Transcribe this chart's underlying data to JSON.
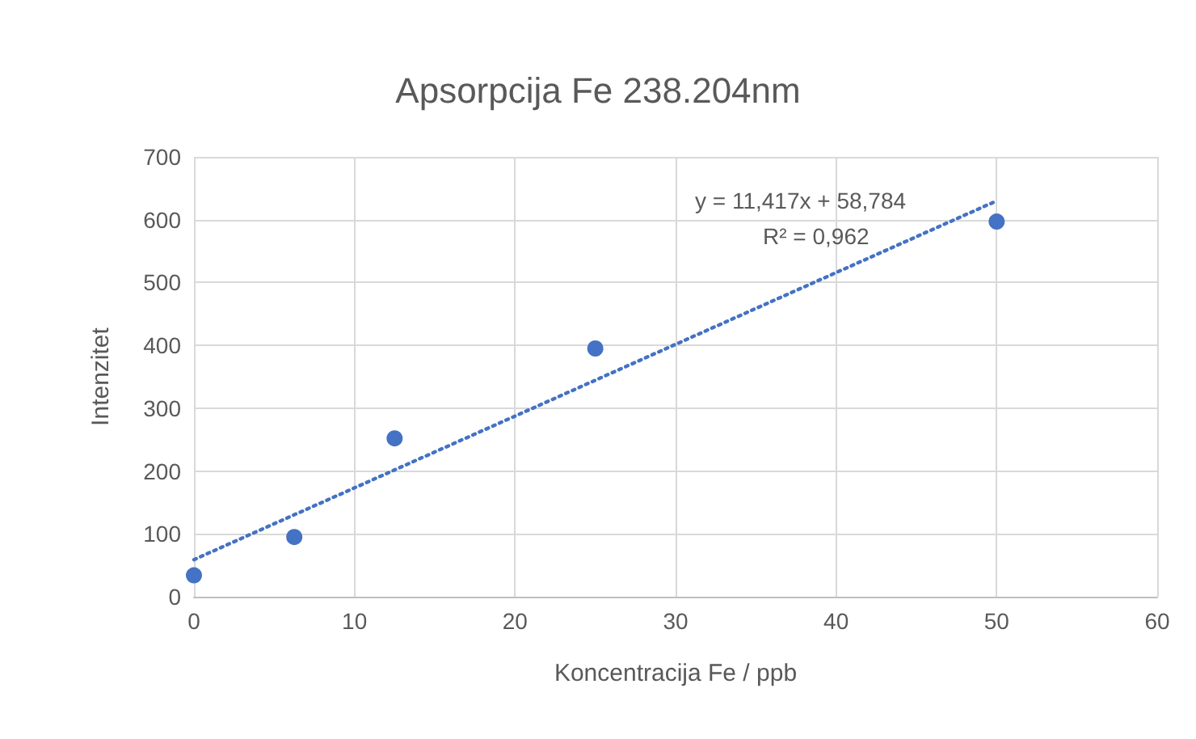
{
  "chart_data": {
    "type": "scatter",
    "title": "Apsorpcija Fe 238.204nm",
    "xlabel": "Koncentracija Fe / ppb",
    "ylabel": "Intenzitet",
    "series": [
      {
        "color": "#4472c4",
        "marker": "circle",
        "x": [
          0,
          6.25,
          12.5,
          25,
          50
        ],
        "values": [
          34,
          95,
          252,
          395,
          597
        ]
      },
      {
        "type": "line",
        "color": "#4472c4",
        "marker": "none",
        "line_style": "dotted",
        "x": [
          0,
          50
        ],
        "values": [
          59,
          630
        ]
      }
    ],
    "annotations": [
      "y = 11,417x + 58,784",
      "R² = 0,962"
    ],
    "xlim": [
      0,
      60
    ],
    "xticks": [
      0,
      10,
      20,
      30,
      40,
      50,
      60
    ],
    "ylim": [
      0,
      700
    ],
    "yticks": [
      0,
      100,
      200,
      300,
      400,
      500,
      600,
      700
    ],
    "grid": true
  }
}
